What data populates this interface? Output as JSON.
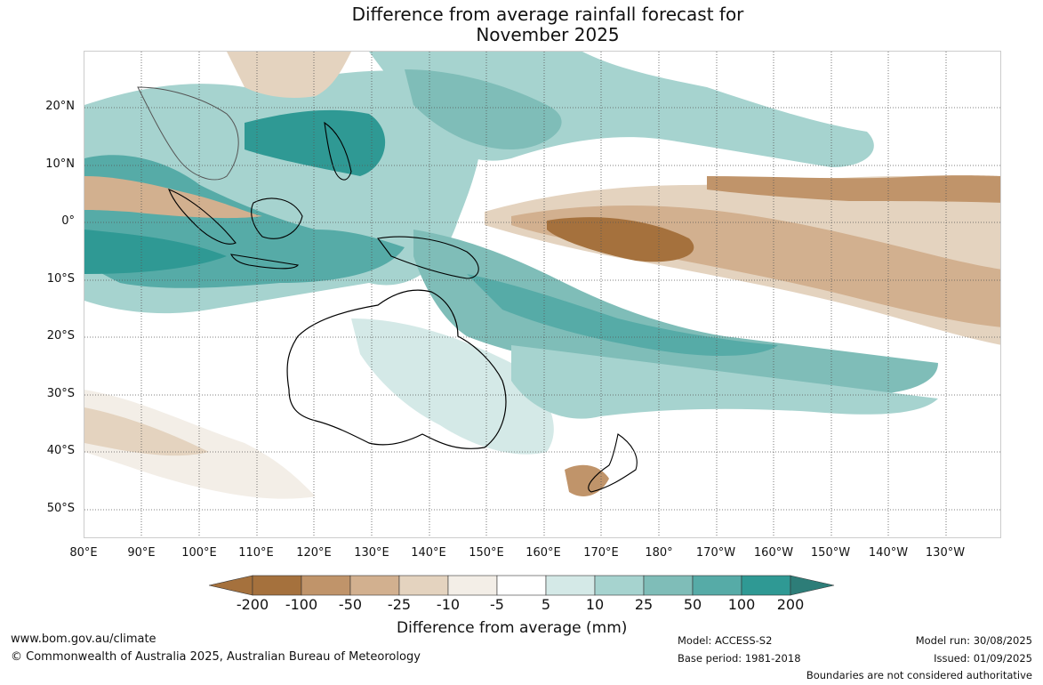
{
  "title_line1": "Difference from average rainfall forecast for",
  "title_line2": "November 2025",
  "latitude_labels": [
    "20°N",
    "10°N",
    "0°",
    "10°S",
    "20°S",
    "30°S",
    "40°S",
    "50°S"
  ],
  "longitude_labels": [
    "80°E",
    "90°E",
    "100°E",
    "110°E",
    "120°E",
    "130°E",
    "140°E",
    "150°E",
    "160°E",
    "170°E",
    "180°",
    "170°W",
    "160°W",
    "150°W",
    "140°W",
    "130°W"
  ],
  "colorbar": {
    "ticks": [
      "-200",
      "-100",
      "-50",
      "-25",
      "-10",
      "-5",
      "5",
      "10",
      "25",
      "50",
      "100",
      "200"
    ],
    "colors": [
      "#a5713d",
      "#a5713d",
      "#c0946a",
      "#d2b08f",
      "#e4d3bf",
      "#f3eee7",
      "#ffffff",
      "#d4e9e7",
      "#a6d3cf",
      "#7fbdb8",
      "#56aba7",
      "#2f9994",
      "#2d7d78"
    ],
    "label": "Difference from average (mm)"
  },
  "footer": {
    "website": "www.bom.gov.au/climate",
    "copyright": "© Commonwealth of Australia 2025, Australian Bureau of Meteorology",
    "model": "Model: ACCESS-S2",
    "base_period": "Base period: 1981-2018",
    "model_run": "Model run: 30/08/2025",
    "issued": "Issued: 01/09/2025",
    "disclaimer": "Boundaries are not considered authoritative"
  }
}
